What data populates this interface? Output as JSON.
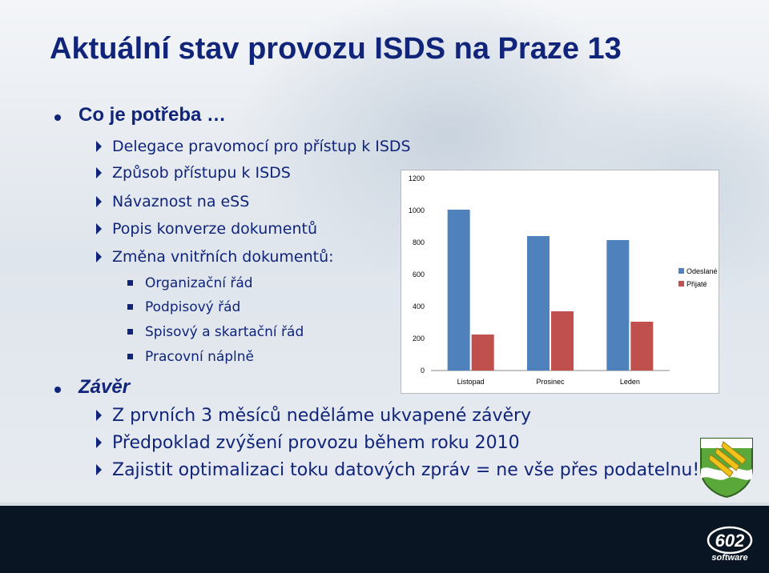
{
  "title": "Aktuální stav provozu ISDS na Praze 13",
  "section1": {
    "heading": "Co je potřeba …",
    "items": [
      "Delegace pravomocí pro přístup k ISDS",
      "Způsob přístupu k ISDS",
      "Návaznost na eSS",
      "Popis konverze dokumentů",
      "Změna vnitřních dokumentů:"
    ],
    "subitems": [
      "Organizační řád",
      "Podpisový řád",
      "Spisový a skartační řád",
      "Pracovní náplně"
    ]
  },
  "section2": {
    "heading": "Závěr",
    "items": [
      "Z prvních 3 měsíců neděláme ukvapené závěry",
      "Předpoklad zvýšení provozu během roku 2010",
      "Zajistit optimalizaci toku datových zpráv = ne vše přes podatelnu!"
    ]
  },
  "chart_data": {
    "type": "bar",
    "categories": [
      "Listopad",
      "Prosinec",
      "Leden"
    ],
    "series": [
      {
        "name": "Odeslané",
        "color": "#4f81bd",
        "values": [
          1005,
          840,
          815
        ]
      },
      {
        "name": "Přijaté",
        "color": "#c0504d",
        "values": [
          225,
          370,
          305
        ]
      }
    ],
    "ylim": [
      0,
      1200
    ],
    "yticks": [
      0,
      200,
      400,
      600,
      800,
      1000,
      1200
    ],
    "grid": false,
    "legend": "right"
  },
  "logo": {
    "number": "602",
    "word": "software"
  }
}
